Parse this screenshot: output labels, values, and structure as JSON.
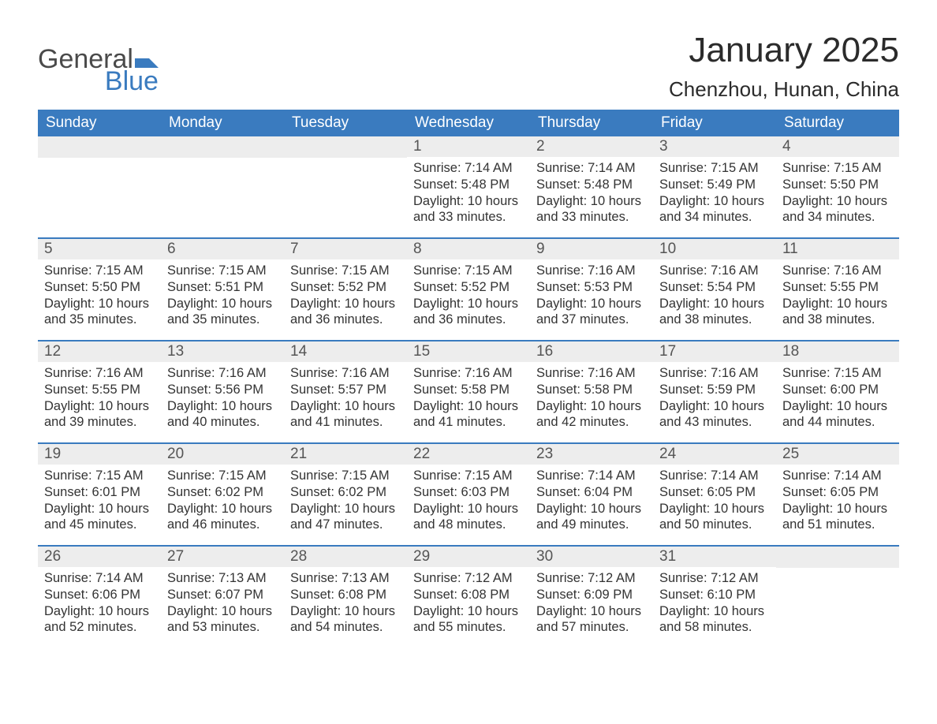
{
  "brand": {
    "word1": "General",
    "word2": "Blue",
    "mark_color": "#3a7bbf",
    "word1_color": "#4a4a4a",
    "word2_color": "#3a7bbf"
  },
  "header": {
    "month_title": "January 2025",
    "location": "Chenzhou, Hunan, China"
  },
  "style": {
    "header_bg": "#3a7bbf",
    "header_fg": "#ffffff",
    "daynum_bg": "#ededed",
    "daynum_fg": "#555555",
    "rule_color": "#3a7bbf",
    "body_color": "#333333",
    "page_bg": "#ffffff",
    "title_fontsize": 44,
    "location_fontsize": 26,
    "dow_fontsize": 19,
    "body_fontsize": 16.5
  },
  "days_of_week": [
    "Sunday",
    "Monday",
    "Tuesday",
    "Wednesday",
    "Thursday",
    "Friday",
    "Saturday"
  ],
  "weeks": [
    [
      null,
      null,
      null,
      {
        "n": "1",
        "sunrise": "7:14 AM",
        "sunset": "5:48 PM",
        "day_h": "10",
        "day_m": "33"
      },
      {
        "n": "2",
        "sunrise": "7:14 AM",
        "sunset": "5:48 PM",
        "day_h": "10",
        "day_m": "33"
      },
      {
        "n": "3",
        "sunrise": "7:15 AM",
        "sunset": "5:49 PM",
        "day_h": "10",
        "day_m": "34"
      },
      {
        "n": "4",
        "sunrise": "7:15 AM",
        "sunset": "5:50 PM",
        "day_h": "10",
        "day_m": "34"
      }
    ],
    [
      {
        "n": "5",
        "sunrise": "7:15 AM",
        "sunset": "5:50 PM",
        "day_h": "10",
        "day_m": "35"
      },
      {
        "n": "6",
        "sunrise": "7:15 AM",
        "sunset": "5:51 PM",
        "day_h": "10",
        "day_m": "35"
      },
      {
        "n": "7",
        "sunrise": "7:15 AM",
        "sunset": "5:52 PM",
        "day_h": "10",
        "day_m": "36"
      },
      {
        "n": "8",
        "sunrise": "7:15 AM",
        "sunset": "5:52 PM",
        "day_h": "10",
        "day_m": "36"
      },
      {
        "n": "9",
        "sunrise": "7:16 AM",
        "sunset": "5:53 PM",
        "day_h": "10",
        "day_m": "37"
      },
      {
        "n": "10",
        "sunrise": "7:16 AM",
        "sunset": "5:54 PM",
        "day_h": "10",
        "day_m": "38"
      },
      {
        "n": "11",
        "sunrise": "7:16 AM",
        "sunset": "5:55 PM",
        "day_h": "10",
        "day_m": "38"
      }
    ],
    [
      {
        "n": "12",
        "sunrise": "7:16 AM",
        "sunset": "5:55 PM",
        "day_h": "10",
        "day_m": "39"
      },
      {
        "n": "13",
        "sunrise": "7:16 AM",
        "sunset": "5:56 PM",
        "day_h": "10",
        "day_m": "40"
      },
      {
        "n": "14",
        "sunrise": "7:16 AM",
        "sunset": "5:57 PM",
        "day_h": "10",
        "day_m": "41"
      },
      {
        "n": "15",
        "sunrise": "7:16 AM",
        "sunset": "5:58 PM",
        "day_h": "10",
        "day_m": "41"
      },
      {
        "n": "16",
        "sunrise": "7:16 AM",
        "sunset": "5:58 PM",
        "day_h": "10",
        "day_m": "42"
      },
      {
        "n": "17",
        "sunrise": "7:16 AM",
        "sunset": "5:59 PM",
        "day_h": "10",
        "day_m": "43"
      },
      {
        "n": "18",
        "sunrise": "7:15 AM",
        "sunset": "6:00 PM",
        "day_h": "10",
        "day_m": "44"
      }
    ],
    [
      {
        "n": "19",
        "sunrise": "7:15 AM",
        "sunset": "6:01 PM",
        "day_h": "10",
        "day_m": "45"
      },
      {
        "n": "20",
        "sunrise": "7:15 AM",
        "sunset": "6:02 PM",
        "day_h": "10",
        "day_m": "46"
      },
      {
        "n": "21",
        "sunrise": "7:15 AM",
        "sunset": "6:02 PM",
        "day_h": "10",
        "day_m": "47"
      },
      {
        "n": "22",
        "sunrise": "7:15 AM",
        "sunset": "6:03 PM",
        "day_h": "10",
        "day_m": "48"
      },
      {
        "n": "23",
        "sunrise": "7:14 AM",
        "sunset": "6:04 PM",
        "day_h": "10",
        "day_m": "49"
      },
      {
        "n": "24",
        "sunrise": "7:14 AM",
        "sunset": "6:05 PM",
        "day_h": "10",
        "day_m": "50"
      },
      {
        "n": "25",
        "sunrise": "7:14 AM",
        "sunset": "6:05 PM",
        "day_h": "10",
        "day_m": "51"
      }
    ],
    [
      {
        "n": "26",
        "sunrise": "7:14 AM",
        "sunset": "6:06 PM",
        "day_h": "10",
        "day_m": "52"
      },
      {
        "n": "27",
        "sunrise": "7:13 AM",
        "sunset": "6:07 PM",
        "day_h": "10",
        "day_m": "53"
      },
      {
        "n": "28",
        "sunrise": "7:13 AM",
        "sunset": "6:08 PM",
        "day_h": "10",
        "day_m": "54"
      },
      {
        "n": "29",
        "sunrise": "7:12 AM",
        "sunset": "6:08 PM",
        "day_h": "10",
        "day_m": "55"
      },
      {
        "n": "30",
        "sunrise": "7:12 AM",
        "sunset": "6:09 PM",
        "day_h": "10",
        "day_m": "57"
      },
      {
        "n": "31",
        "sunrise": "7:12 AM",
        "sunset": "6:10 PM",
        "day_h": "10",
        "day_m": "58"
      },
      null
    ]
  ],
  "labels": {
    "sunrise": "Sunrise: ",
    "sunset": "Sunset: ",
    "daylight1": "Daylight: ",
    "hours": " hours",
    "and": "and ",
    "minutes": " minutes."
  }
}
